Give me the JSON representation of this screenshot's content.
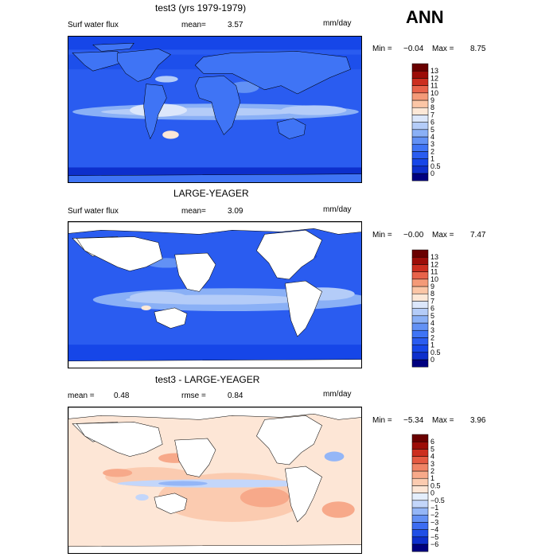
{
  "season": "ANN",
  "chart_data": [
    {
      "type": "heatmap",
      "title": "test3 (yrs 1979-1979)",
      "left_label": "Surf water flux",
      "stat1_label": "mean=",
      "stat1_value": "3.57",
      "units": "mm/day",
      "min_label": "Min =",
      "min_value": "−0.04",
      "max_label": "Max =",
      "max_value": "8.75",
      "land_masked": false,
      "levels": [
        "0",
        "0.5",
        "1",
        "2",
        "3",
        "4",
        "5",
        "6",
        "7",
        "8",
        "9",
        "10",
        "11",
        "12",
        "13"
      ],
      "colors": [
        "#00007f",
        "#0d2fcc",
        "#1646e8",
        "#2a5cf0",
        "#3f74f5",
        "#6291f5",
        "#8ab0f6",
        "#b4ccf8",
        "#dce7fb",
        "#fde8d7",
        "#fbc6a6",
        "#f49a78",
        "#e8634a",
        "#cc2e1f",
        "#9c0d08",
        "#6a0000"
      ]
    },
    {
      "type": "heatmap",
      "title": "LARGE-YEAGER",
      "left_label": "Surf water flux",
      "stat1_label": "mean=",
      "stat1_value": "3.09",
      "units": "mm/day",
      "min_label": "Min =",
      "min_value": "−0.00",
      "max_label": "Max =",
      "max_value": "7.47",
      "land_masked": true,
      "levels": [
        "0",
        "0.5",
        "1",
        "2",
        "3",
        "4",
        "5",
        "6",
        "7",
        "8",
        "9",
        "10",
        "11",
        "12",
        "13"
      ],
      "colors": [
        "#00007f",
        "#0d2fcc",
        "#1646e8",
        "#2a5cf0",
        "#3f74f5",
        "#6291f5",
        "#8ab0f6",
        "#b4ccf8",
        "#dce7fb",
        "#fde8d7",
        "#fbc6a6",
        "#f49a78",
        "#e8634a",
        "#cc2e1f",
        "#9c0d08",
        "#6a0000"
      ]
    },
    {
      "type": "heatmap",
      "title": "test3 - LARGE-YEAGER",
      "left_label": "mean =",
      "left_value": "0.48",
      "stat1_label": "rmse =",
      "stat1_value": "0.84",
      "units": "mm/day",
      "min_label": "Min =",
      "min_value": "−5.34",
      "max_label": "Max =",
      "max_value": "3.96",
      "land_masked": true,
      "levels": [
        "−6",
        "−5",
        "−4",
        "−3",
        "−2",
        "−1",
        "−0.5",
        "0",
        "0.5",
        "1",
        "2",
        "3",
        "4",
        "5",
        "6"
      ],
      "colors": [
        "#00007f",
        "#0d2fcc",
        "#1f4fe6",
        "#3c6cf2",
        "#6390f4",
        "#94b6f7",
        "#c3d6fa",
        "#e4eefc",
        "#fde6d6",
        "#fbcbb0",
        "#f7a98a",
        "#f08466",
        "#e55a42",
        "#cc2e1f",
        "#9c0d08",
        "#6a0000"
      ]
    }
  ]
}
